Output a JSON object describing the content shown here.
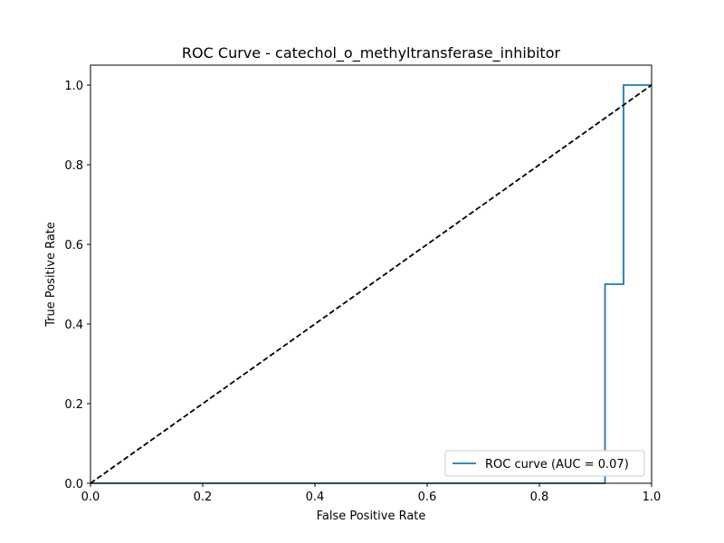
{
  "chart_data": {
    "type": "line",
    "title": "ROC Curve - catechol_o_methyltransferase_inhibitor",
    "xlabel": "False Positive Rate",
    "ylabel": "True Positive Rate",
    "xlim": [
      0.0,
      1.0
    ],
    "ylim": [
      0.0,
      1.05
    ],
    "xticks": [
      "0.0",
      "0.2",
      "0.4",
      "0.6",
      "0.8",
      "1.0"
    ],
    "yticks": [
      "0.0",
      "0.2",
      "0.4",
      "0.6",
      "0.8",
      "1.0"
    ],
    "grid": false,
    "legend_position": "lower-right",
    "series": [
      {
        "name": "ROC curve (AUC = 0.07)",
        "color": "#1f77b4",
        "style": "solid",
        "x": [
          0.0,
          0.0,
          0.917,
          0.917,
          0.95,
          0.95,
          1.0
        ],
        "y": [
          0.0,
          0.0,
          0.0,
          0.5,
          0.5,
          1.0,
          1.0
        ]
      },
      {
        "color": "#000000",
        "style": "dashed",
        "x": [
          0.0,
          1.0
        ],
        "y": [
          0.0,
          1.0
        ]
      }
    ]
  }
}
